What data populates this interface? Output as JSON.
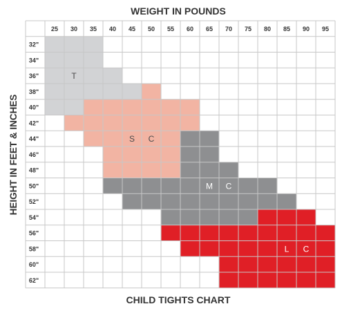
{
  "chart_data": {
    "type": "heatmap",
    "title": "WEIGHT IN POUNDS",
    "subtitle": "CHILD TIGHTS CHART",
    "xlabel": "WEIGHT IN POUNDS",
    "ylabel": "HEIGHT IN FEET & INCHES",
    "x_categories": [
      "25",
      "30",
      "35",
      "40",
      "45",
      "50",
      "55",
      "60",
      "65",
      "70",
      "75",
      "80",
      "85",
      "90",
      "95"
    ],
    "y_categories": [
      "32\"",
      "34\"",
      "36\"",
      "38\"",
      "40\"",
      "42\"",
      "44\"",
      "46\"",
      "48\"",
      "50\"",
      "52\"",
      "54\"",
      "56\"",
      "58\"",
      "60\"",
      "62\""
    ],
    "grid": true,
    "colors": {
      "T": "#d2d3d5",
      "S": "#f2b4a3",
      "M": "#8e8f91",
      "L": "#e01f26",
      "empty": "#ffffff",
      "gridline": "#c7c7c7",
      "label_dark": "#4a4a4a",
      "label_light": "#ffffff"
    },
    "sizes": [
      {
        "key": "T",
        "label_parts": [
          "T"
        ],
        "label_cell": {
          "weight": "30",
          "height": "36\""
        },
        "cells": [
          {
            "height": "32\"",
            "weights": [
              "25",
              "30",
              "35"
            ]
          },
          {
            "height": "34\"",
            "weights": [
              "25",
              "30",
              "35"
            ]
          },
          {
            "height": "36\"",
            "weights": [
              "25",
              "30",
              "35",
              "40"
            ]
          },
          {
            "height": "38\"",
            "weights": [
              "25",
              "30",
              "35",
              "40",
              "45"
            ]
          },
          {
            "height": "40\"",
            "weights": [
              "25",
              "30"
            ]
          }
        ]
      },
      {
        "key": "S",
        "label_parts": [
          "S",
          "C"
        ],
        "label_cell": {
          "weight": "45",
          "height": "44\""
        },
        "cells": [
          {
            "height": "38\"",
            "weights": [
              "50"
            ]
          },
          {
            "height": "40\"",
            "weights": [
              "35",
              "40",
              "45",
              "50",
              "55",
              "60"
            ]
          },
          {
            "height": "42\"",
            "weights": [
              "30",
              "35",
              "40",
              "45",
              "50",
              "55",
              "60"
            ]
          },
          {
            "height": "44\"",
            "weights": [
              "35",
              "40",
              "45",
              "50",
              "55"
            ]
          },
          {
            "height": "46\"",
            "weights": [
              "40",
              "45",
              "50",
              "55"
            ]
          },
          {
            "height": "48\"",
            "weights": [
              "40",
              "45",
              "50",
              "55"
            ]
          }
        ]
      },
      {
        "key": "M",
        "label_parts": [
          "M",
          "C"
        ],
        "label_cell": {
          "weight": "65",
          "height": "50\""
        },
        "cells": [
          {
            "height": "44\"",
            "weights": [
              "60",
              "65"
            ]
          },
          {
            "height": "46\"",
            "weights": [
              "60",
              "65"
            ]
          },
          {
            "height": "48\"",
            "weights": [
              "60",
              "65",
              "70"
            ]
          },
          {
            "height": "50\"",
            "weights": [
              "40",
              "45",
              "50",
              "55",
              "60",
              "65",
              "70",
              "75",
              "80"
            ]
          },
          {
            "height": "52\"",
            "weights": [
              "45",
              "50",
              "55",
              "60",
              "65",
              "70",
              "75",
              "80",
              "85"
            ]
          },
          {
            "height": "54\"",
            "weights": [
              "55",
              "60",
              "65",
              "70",
              "75"
            ]
          }
        ]
      },
      {
        "key": "L",
        "label_parts": [
          "L",
          "C"
        ],
        "label_cell": {
          "weight": "85",
          "height": "58\""
        },
        "cells": [
          {
            "height": "54\"",
            "weights": [
              "80",
              "85",
              "90"
            ]
          },
          {
            "height": "56\"",
            "weights": [
              "55",
              "60",
              "65",
              "70",
              "75",
              "80",
              "85",
              "90",
              "95"
            ]
          },
          {
            "height": "58\"",
            "weights": [
              "60",
              "65",
              "70",
              "75",
              "80",
              "85",
              "90",
              "95"
            ]
          },
          {
            "height": "60\"",
            "weights": [
              "70",
              "75",
              "80",
              "85",
              "90",
              "95"
            ]
          },
          {
            "height": "62\"",
            "weights": [
              "70",
              "75",
              "80",
              "85",
              "90",
              "95"
            ]
          }
        ]
      }
    ]
  }
}
